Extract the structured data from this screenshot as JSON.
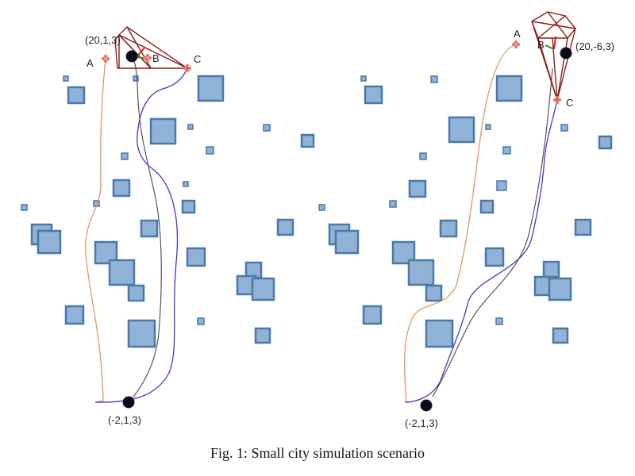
{
  "caption": "Fig. 1: Small city simulation scenario",
  "colors": {
    "obstacle_fill": "#8fb2d6",
    "obstacle_edge": "#4a78a8",
    "path_A": "#e8955a",
    "path_B": "#555555",
    "path_C": "#3a3ad0",
    "frustum": "#8b1c1c",
    "waypoint": "#e8796f",
    "drone": "#0a0a14"
  },
  "panels": [
    {
      "name": "left",
      "start_label": "(-2,1,3)",
      "goal_label": "(20,1,3)",
      "waypoints": {
        "a": "A",
        "b": "B",
        "c": "C"
      }
    },
    {
      "name": "right",
      "start_label": "(-2,1,3)",
      "goal_label": "(20,-6,3)",
      "waypoints": {
        "a": "A",
        "b": "B",
        "c": "C"
      }
    }
  ]
}
